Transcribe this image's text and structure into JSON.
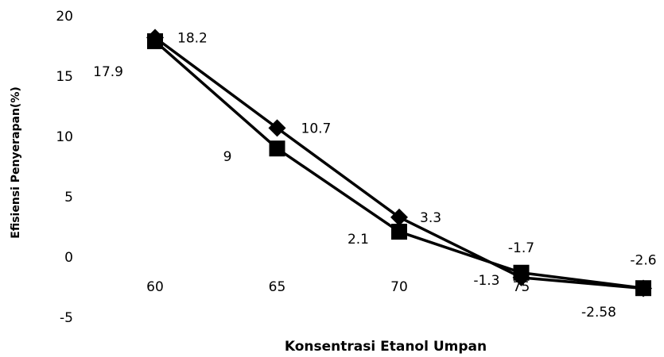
{
  "chart_data": {
    "type": "line",
    "title": "",
    "xlabel": "Konsentrasi Etanol Umpan",
    "ylabel": "Efisiensi Penyerapan(%)",
    "categories": [
      "60",
      "65",
      "70",
      "75",
      "80"
    ],
    "x_tick_labels": [
      "60",
      "65",
      "70",
      "75"
    ],
    "ylim": [
      -5,
      20
    ],
    "y_ticks": [
      -5,
      0,
      5,
      10,
      15,
      20
    ],
    "grid": false,
    "legend": "none",
    "series": [
      {
        "marker": "diamond",
        "color": "#000000",
        "values": [
          18.2,
          10.7,
          3.3,
          -1.7,
          -2.6
        ],
        "labels": [
          "18.2",
          "10.7",
          "3.3",
          "-1.7",
          "-2.6"
        ]
      },
      {
        "marker": "square",
        "color": "#000000",
        "values": [
          17.9,
          9,
          2.1,
          -1.3,
          -2.58
        ],
        "labels": [
          "17.9",
          "9",
          "2.1",
          "-1.3",
          "-2.58"
        ]
      }
    ]
  }
}
